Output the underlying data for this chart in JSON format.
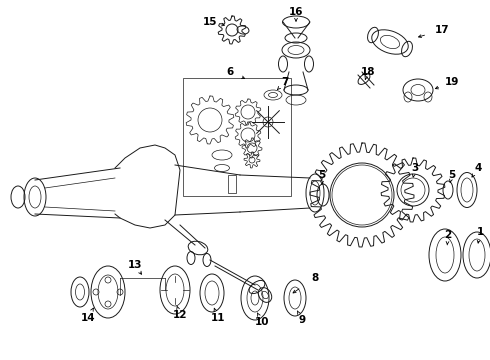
{
  "background_color": "#ffffff",
  "line_color": "#1a1a1a",
  "fig_width": 4.9,
  "fig_height": 3.6,
  "dpi": 100,
  "font_size": 7.5,
  "font_weight": "bold",
  "arrow_color": "#000000"
}
